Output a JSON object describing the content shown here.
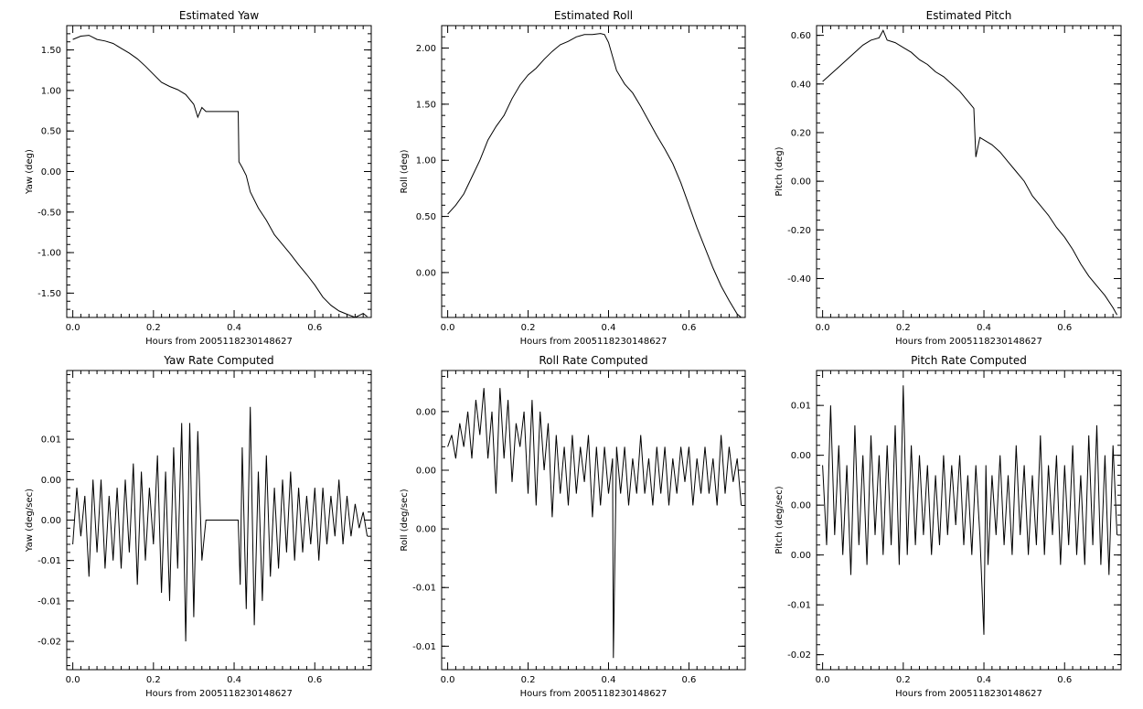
{
  "figure": {
    "background": "#ffffff",
    "line_color": "#000000"
  },
  "chart_data": [
    {
      "type": "line",
      "title": "Estimated Yaw",
      "xlabel": "Hours from 2005118230148627",
      "ylabel": "Yaw (deg)",
      "xlim": [
        -0.015,
        0.74
      ],
      "ylim": [
        -1.8,
        1.8
      ],
      "xticks": [
        0.0,
        0.2,
        0.4,
        0.6
      ],
      "xtick_labels": [
        "0.0",
        "0.2",
        "0.4",
        "0.6"
      ],
      "yticks": [
        -1.5,
        -1.0,
        -0.5,
        0.0,
        0.5,
        1.0,
        1.5
      ],
      "ytick_labels": [
        "-1.50",
        "-1.00",
        "-0.50",
        "0.00",
        "0.50",
        "1.00",
        "1.50"
      ],
      "x": [
        0.0,
        0.02,
        0.04,
        0.06,
        0.08,
        0.1,
        0.12,
        0.14,
        0.16,
        0.18,
        0.2,
        0.22,
        0.24,
        0.26,
        0.28,
        0.3,
        0.31,
        0.32,
        0.33,
        0.36,
        0.39,
        0.41,
        0.412,
        0.42,
        0.43,
        0.44,
        0.46,
        0.48,
        0.5,
        0.52,
        0.54,
        0.56,
        0.58,
        0.6,
        0.62,
        0.64,
        0.66,
        0.68,
        0.7,
        0.72,
        0.73
      ],
      "y": [
        1.63,
        1.67,
        1.68,
        1.63,
        1.61,
        1.58,
        1.52,
        1.46,
        1.39,
        1.3,
        1.2,
        1.1,
        1.05,
        1.01,
        0.95,
        0.83,
        0.67,
        0.79,
        0.74,
        0.74,
        0.74,
        0.74,
        0.12,
        0.05,
        -0.05,
        -0.25,
        -0.45,
        -0.6,
        -0.78,
        -0.9,
        -1.02,
        -1.15,
        -1.27,
        -1.4,
        -1.55,
        -1.65,
        -1.72,
        -1.76,
        -1.8,
        -1.75,
        -1.79
      ]
    },
    {
      "type": "line",
      "title": "Estimated Roll",
      "xlabel": "Hours from 2005118230148627",
      "ylabel": "Roll (deg)",
      "xlim": [
        -0.015,
        0.74
      ],
      "ylim": [
        -0.4,
        2.2
      ],
      "xticks": [
        0.0,
        0.2,
        0.4,
        0.6
      ],
      "xtick_labels": [
        "0.0",
        "0.2",
        "0.4",
        "0.6"
      ],
      "yticks": [
        0.0,
        0.5,
        1.0,
        1.5,
        2.0
      ],
      "ytick_labels": [
        "0.00",
        "0.50",
        "1.00",
        "1.50",
        "2.00"
      ],
      "x": [
        0.0,
        0.02,
        0.04,
        0.06,
        0.08,
        0.1,
        0.12,
        0.14,
        0.16,
        0.18,
        0.2,
        0.22,
        0.24,
        0.26,
        0.28,
        0.3,
        0.32,
        0.34,
        0.36,
        0.38,
        0.39,
        0.4,
        0.42,
        0.44,
        0.46,
        0.48,
        0.5,
        0.52,
        0.54,
        0.56,
        0.58,
        0.6,
        0.62,
        0.64,
        0.66,
        0.68,
        0.7,
        0.72,
        0.73
      ],
      "y": [
        0.52,
        0.6,
        0.7,
        0.85,
        1.0,
        1.18,
        1.3,
        1.4,
        1.55,
        1.67,
        1.76,
        1.82,
        1.9,
        1.97,
        2.03,
        2.06,
        2.1,
        2.12,
        2.12,
        2.13,
        2.12,
        2.05,
        1.8,
        1.68,
        1.6,
        1.48,
        1.35,
        1.22,
        1.1,
        0.97,
        0.8,
        0.6,
        0.4,
        0.22,
        0.04,
        -0.12,
        -0.25,
        -0.37,
        -0.4
      ]
    },
    {
      "type": "line",
      "title": "Estimated Pitch",
      "xlabel": "Hours from 2005118230148627",
      "ylabel": "Pitch (deg)",
      "xlim": [
        -0.015,
        0.74
      ],
      "ylim": [
        -0.56,
        0.64
      ],
      "xticks": [
        0.0,
        0.2,
        0.4,
        0.6
      ],
      "xtick_labels": [
        "0.0",
        "0.2",
        "0.4",
        "0.6"
      ],
      "yticks": [
        -0.4,
        -0.2,
        0.0,
        0.2,
        0.4,
        0.6
      ],
      "ytick_labels": [
        "-0.40",
        "-0.20",
        "0.00",
        "0.20",
        "0.40",
        "0.60"
      ],
      "x": [
        0.0,
        0.02,
        0.04,
        0.06,
        0.08,
        0.1,
        0.12,
        0.14,
        0.15,
        0.16,
        0.18,
        0.2,
        0.22,
        0.24,
        0.26,
        0.28,
        0.3,
        0.32,
        0.34,
        0.36,
        0.375,
        0.38,
        0.39,
        0.4,
        0.42,
        0.44,
        0.46,
        0.48,
        0.5,
        0.52,
        0.54,
        0.56,
        0.58,
        0.6,
        0.62,
        0.64,
        0.66,
        0.68,
        0.7,
        0.72,
        0.73
      ],
      "y": [
        0.41,
        0.44,
        0.47,
        0.5,
        0.53,
        0.56,
        0.58,
        0.59,
        0.62,
        0.58,
        0.57,
        0.55,
        0.53,
        0.5,
        0.48,
        0.45,
        0.43,
        0.4,
        0.37,
        0.33,
        0.3,
        0.1,
        0.18,
        0.17,
        0.15,
        0.12,
        0.08,
        0.04,
        0.0,
        -0.06,
        -0.1,
        -0.14,
        -0.19,
        -0.23,
        -0.28,
        -0.34,
        -0.39,
        -0.43,
        -0.47,
        -0.52,
        -0.55
      ]
    },
    {
      "type": "line",
      "title": "Yaw Rate Computed",
      "xlabel": "Hours from 2005118230148627",
      "ylabel": "Yaw (deg/sec)",
      "xlim": [
        -0.015,
        0.74
      ],
      "ylim": [
        -0.0185,
        0.0185
      ],
      "xticks": [
        0.0,
        0.2,
        0.4,
        0.6
      ],
      "xtick_labels": [
        "0.0",
        "0.2",
        "0.4",
        "0.6"
      ],
      "yticks": [
        0.01,
        0.005,
        0.0,
        -0.005,
        -0.01,
        -0.015
      ],
      "ytick_labels": [
        "0.01",
        "0.00",
        "0.00",
        "-0.01",
        "-0.01",
        "-0.02"
      ],
      "x": [
        0.0,
        0.01,
        0.02,
        0.03,
        0.04,
        0.05,
        0.06,
        0.07,
        0.08,
        0.09,
        0.1,
        0.11,
        0.12,
        0.13,
        0.14,
        0.15,
        0.16,
        0.17,
        0.18,
        0.19,
        0.2,
        0.21,
        0.22,
        0.23,
        0.24,
        0.25,
        0.26,
        0.27,
        0.28,
        0.29,
        0.3,
        0.31,
        0.32,
        0.33,
        0.36,
        0.39,
        0.41,
        0.415,
        0.42,
        0.43,
        0.44,
        0.45,
        0.46,
        0.47,
        0.48,
        0.49,
        0.5,
        0.51,
        0.52,
        0.53,
        0.54,
        0.55,
        0.56,
        0.57,
        0.58,
        0.59,
        0.6,
        0.61,
        0.62,
        0.63,
        0.64,
        0.65,
        0.66,
        0.67,
        0.68,
        0.69,
        0.7,
        0.71,
        0.72,
        0.73
      ],
      "y": [
        -0.003,
        0.004,
        -0.002,
        0.003,
        -0.007,
        0.005,
        -0.004,
        0.005,
        -0.006,
        0.003,
        -0.005,
        0.004,
        -0.006,
        0.005,
        -0.004,
        0.007,
        -0.008,
        0.006,
        -0.005,
        0.004,
        -0.003,
        0.008,
        -0.009,
        0.006,
        -0.01,
        0.009,
        -0.006,
        0.012,
        -0.015,
        0.012,
        -0.012,
        0.011,
        -0.005,
        0.0,
        0.0,
        0.0,
        0.0,
        -0.008,
        0.009,
        -0.011,
        0.014,
        -0.013,
        0.006,
        -0.01,
        0.008,
        -0.007,
        0.004,
        -0.006,
        0.005,
        -0.004,
        0.006,
        -0.005,
        0.004,
        -0.004,
        0.003,
        -0.003,
        0.004,
        -0.005,
        0.004,
        -0.003,
        0.003,
        -0.002,
        0.005,
        -0.003,
        0.003,
        -0.002,
        0.002,
        -0.001,
        0.001,
        -0.002
      ]
    },
    {
      "type": "line",
      "title": "Roll Rate Computed",
      "xlabel": "Hours from 2005118230148627",
      "ylabel": "Roll (deg/sec)",
      "xlim": [
        -0.015,
        0.74
      ],
      "ylim": [
        -0.017,
        0.0085
      ],
      "xticks": [
        0.0,
        0.2,
        0.4,
        0.6
      ],
      "xtick_labels": [
        "0.0",
        "0.2",
        "0.4",
        "0.6"
      ],
      "yticks": [
        0.005,
        0.0,
        -0.005,
        -0.01,
        -0.015
      ],
      "ytick_labels": [
        "0.00",
        "0.00",
        "0.00",
        "-0.01",
        "-0.01"
      ],
      "x": [
        0.0,
        0.01,
        0.02,
        0.03,
        0.04,
        0.05,
        0.06,
        0.07,
        0.08,
        0.09,
        0.1,
        0.11,
        0.12,
        0.13,
        0.14,
        0.15,
        0.16,
        0.17,
        0.18,
        0.19,
        0.2,
        0.21,
        0.22,
        0.23,
        0.24,
        0.25,
        0.26,
        0.27,
        0.28,
        0.29,
        0.3,
        0.31,
        0.32,
        0.33,
        0.34,
        0.35,
        0.36,
        0.37,
        0.38,
        0.39,
        0.4,
        0.41,
        0.412,
        0.42,
        0.43,
        0.44,
        0.45,
        0.46,
        0.47,
        0.48,
        0.49,
        0.5,
        0.51,
        0.52,
        0.53,
        0.54,
        0.55,
        0.56,
        0.57,
        0.58,
        0.59,
        0.6,
        0.61,
        0.62,
        0.63,
        0.64,
        0.65,
        0.66,
        0.67,
        0.68,
        0.69,
        0.7,
        0.71,
        0.72,
        0.73
      ],
      "y": [
        0.002,
        0.003,
        0.001,
        0.004,
        0.002,
        0.005,
        0.001,
        0.006,
        0.003,
        0.007,
        0.001,
        0.005,
        -0.002,
        0.007,
        0.001,
        0.006,
        -0.001,
        0.004,
        0.002,
        0.005,
        -0.002,
        0.006,
        -0.003,
        0.005,
        0.0,
        0.004,
        -0.004,
        0.003,
        -0.002,
        0.002,
        -0.003,
        0.003,
        -0.002,
        0.002,
        -0.001,
        0.003,
        -0.004,
        0.002,
        -0.003,
        0.002,
        -0.002,
        0.001,
        -0.016,
        0.002,
        -0.002,
        0.002,
        -0.003,
        0.001,
        -0.002,
        0.003,
        -0.002,
        0.001,
        -0.003,
        0.002,
        -0.002,
        0.002,
        -0.003,
        0.001,
        -0.002,
        0.002,
        -0.001,
        0.002,
        -0.003,
        0.001,
        -0.002,
        0.002,
        -0.002,
        0.001,
        -0.003,
        0.003,
        -0.002,
        0.002,
        -0.001,
        0.001,
        -0.003
      ]
    },
    {
      "type": "line",
      "title": "Pitch Rate Computed",
      "xlabel": "Hours from 2005118230148627",
      "ylabel": "Pitch (deg/sec)",
      "xlim": [
        -0.015,
        0.74
      ],
      "ylim": [
        -0.0165,
        0.0135
      ],
      "xticks": [
        0.0,
        0.2,
        0.4,
        0.6
      ],
      "xtick_labels": [
        "0.0",
        "0.2",
        "0.4",
        "0.6"
      ],
      "yticks": [
        0.01,
        0.005,
        0.0,
        -0.005,
        -0.01,
        -0.015
      ],
      "ytick_labels": [
        "0.01",
        "0.00",
        "0.00",
        "0.00",
        "-0.01",
        "-0.02"
      ],
      "x": [
        0.0,
        0.01,
        0.02,
        0.03,
        0.04,
        0.05,
        0.06,
        0.07,
        0.08,
        0.09,
        0.1,
        0.11,
        0.12,
        0.13,
        0.14,
        0.15,
        0.16,
        0.17,
        0.18,
        0.19,
        0.2,
        0.21,
        0.22,
        0.23,
        0.24,
        0.25,
        0.26,
        0.27,
        0.28,
        0.29,
        0.3,
        0.31,
        0.32,
        0.33,
        0.34,
        0.35,
        0.36,
        0.37,
        0.38,
        0.39,
        0.4,
        0.405,
        0.41,
        0.42,
        0.43,
        0.44,
        0.45,
        0.46,
        0.47,
        0.48,
        0.49,
        0.5,
        0.51,
        0.52,
        0.53,
        0.54,
        0.55,
        0.56,
        0.57,
        0.58,
        0.59,
        0.6,
        0.61,
        0.62,
        0.63,
        0.64,
        0.65,
        0.66,
        0.67,
        0.68,
        0.69,
        0.7,
        0.71,
        0.72,
        0.73
      ],
      "y": [
        0.004,
        -0.004,
        0.01,
        -0.003,
        0.006,
        -0.005,
        0.004,
        -0.007,
        0.008,
        -0.004,
        0.005,
        -0.006,
        0.007,
        -0.003,
        0.005,
        -0.005,
        0.006,
        -0.004,
        0.008,
        -0.006,
        0.012,
        -0.005,
        0.006,
        -0.004,
        0.005,
        -0.003,
        0.004,
        -0.005,
        0.003,
        -0.004,
        0.005,
        -0.003,
        0.004,
        -0.002,
        0.005,
        -0.004,
        0.003,
        -0.005,
        0.004,
        -0.003,
        -0.013,
        0.004,
        -0.006,
        0.003,
        -0.003,
        0.005,
        -0.004,
        0.003,
        -0.005,
        0.006,
        -0.003,
        0.004,
        -0.005,
        0.003,
        -0.004,
        0.007,
        -0.005,
        0.004,
        -0.003,
        0.005,
        -0.006,
        0.004,
        -0.004,
        0.006,
        -0.005,
        0.003,
        -0.006,
        0.007,
        -0.004,
        0.008,
        -0.006,
        0.005,
        -0.007,
        0.006,
        -0.003
      ]
    }
  ]
}
